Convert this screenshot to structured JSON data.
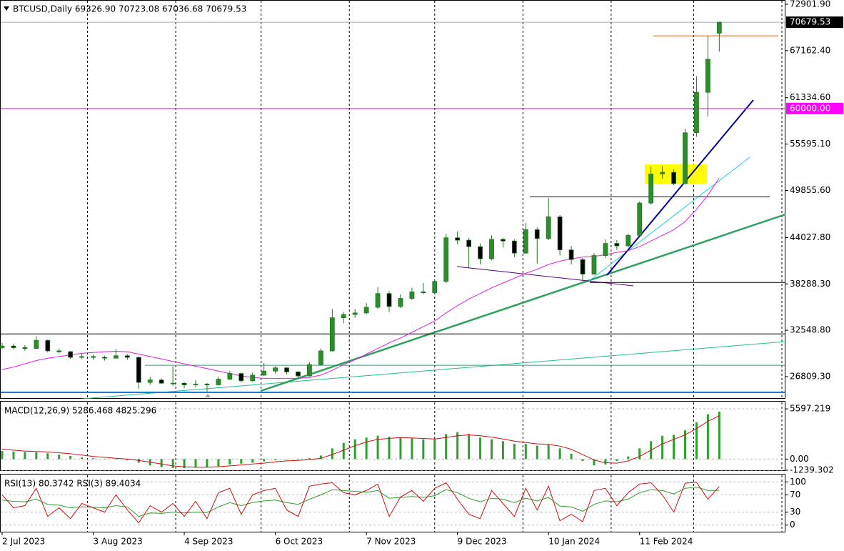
{
  "chart_data": [
    {
      "type": "candlestick",
      "title": "BTCUSD,Daily  69326.90 70723.08 67036.68 70679.53",
      "x": [
        "2023-07-02",
        "2023-07-06",
        "2023-07-10",
        "2023-07-14",
        "2023-07-18",
        "2023-07-22",
        "2023-07-26",
        "2023-07-30",
        "2023-08-03",
        "2023-08-07",
        "2023-08-11",
        "2023-08-15",
        "2023-08-19",
        "2023-08-23",
        "2023-08-27",
        "2023-08-31",
        "2023-09-04",
        "2023-09-08",
        "2023-09-12",
        "2023-09-16",
        "2023-09-20",
        "2023-09-24",
        "2023-09-28",
        "2023-10-02",
        "2023-10-06",
        "2023-10-10",
        "2023-10-14",
        "2023-10-18",
        "2023-10-22",
        "2023-10-26",
        "2023-10-30",
        "2023-11-03",
        "2023-11-07",
        "2023-11-11",
        "2023-11-15",
        "2023-11-19",
        "2023-11-23",
        "2023-11-27",
        "2023-12-01",
        "2023-12-05",
        "2023-12-09",
        "2023-12-13",
        "2023-12-17",
        "2023-12-21",
        "2023-12-25",
        "2023-12-29",
        "2024-01-02",
        "2024-01-06",
        "2024-01-10",
        "2024-01-14",
        "2024-01-18",
        "2024-01-22",
        "2024-01-26",
        "2024-01-30",
        "2024-02-03",
        "2024-02-07",
        "2024-02-11",
        "2024-02-15",
        "2024-02-19",
        "2024-02-23",
        "2024-02-27",
        "2024-03-02",
        "2024-03-06",
        "2024-03-10"
      ],
      "open": [
        30400,
        30600,
        30400,
        30300,
        31300,
        30000,
        29900,
        29200,
        29300,
        29200,
        29100,
        29400,
        29200,
        26100,
        26400,
        26000,
        26000,
        25800,
        25900,
        25800,
        26500,
        27200,
        26300,
        27000,
        27500,
        27900,
        27400,
        26900,
        28300,
        30000,
        34100,
        34500,
        34700,
        35400,
        37100,
        35500,
        36500,
        37300,
        37200,
        38600,
        44000,
        43700,
        42900,
        41400,
        43800,
        43600,
        42100,
        45000,
        43900,
        46600,
        42500,
        41300,
        39500,
        41800,
        43300,
        43000,
        44300,
        48300,
        51900,
        52100,
        50700,
        57000,
        62000,
        69326.9
      ],
      "high": [
        31000,
        30900,
        30700,
        31800,
        31400,
        30300,
        30000,
        29700,
        29500,
        29400,
        30200,
        29600,
        29300,
        26800,
        26600,
        28100,
        26100,
        26400,
        26000,
        26800,
        27500,
        27300,
        27300,
        28500,
        28100,
        28000,
        27500,
        28600,
        30300,
        35200,
        34800,
        35200,
        35900,
        37900,
        37400,
        37000,
        37800,
        38400,
        38800,
        44500,
        44800,
        44000,
        43300,
        44300,
        44000,
        43800,
        45800,
        45300,
        48900,
        46800,
        43000,
        41500,
        42100,
        43800,
        43700,
        44500,
        48500,
        52800,
        52900,
        52500,
        57500,
        64000,
        69000,
        70723.08
      ],
      "low": [
        30200,
        30200,
        30000,
        30200,
        29800,
        29700,
        29000,
        29000,
        28900,
        28800,
        29000,
        28900,
        25300,
        25800,
        25900,
        25700,
        25400,
        25500,
        24900,
        25700,
        26400,
        26100,
        26200,
        26900,
        27200,
        27100,
        26600,
        26800,
        28200,
        29900,
        33400,
        34100,
        34500,
        35200,
        34800,
        35300,
        36300,
        37000,
        37100,
        38400,
        43200,
        40300,
        40700,
        41200,
        42800,
        41600,
        42000,
        40800,
        43700,
        41800,
        40700,
        38600,
        39400,
        41500,
        42500,
        42800,
        44200,
        48100,
        51300,
        50500,
        50600,
        56500,
        59000,
        67036.68
      ],
      "close": [
        30600,
        30400,
        30300,
        31300,
        30000,
        29900,
        29200,
        29300,
        29200,
        29100,
        29400,
        29200,
        26100,
        26400,
        26000,
        26000,
        25800,
        25900,
        25800,
        26500,
        27200,
        26300,
        27000,
        27500,
        27900,
        27400,
        26900,
        28300,
        30000,
        34100,
        34500,
        34700,
        35400,
        37100,
        35500,
        36500,
        37300,
        37200,
        38600,
        44000,
        43700,
        42900,
        41400,
        43800,
        43600,
        42100,
        45000,
        43900,
        46600,
        42500,
        41300,
        39500,
        41800,
        43300,
        43000,
        44300,
        48300,
        51900,
        52100,
        50700,
        57000,
        62000,
        66100,
        70679.53
      ],
      "up_color": "#2e8b2e",
      "down_color": "#000000",
      "wick_color": "#1e7a1e",
      "ma": {
        "color": "#e020e0",
        "values": [
          27700,
          28000,
          28400,
          28800,
          29100,
          29300,
          29500,
          29700,
          29800,
          29900,
          29950,
          29900,
          29600,
          29300,
          29000,
          28700,
          28400,
          28100,
          27800,
          27500,
          27200,
          26900,
          26700,
          26600,
          26600,
          26600,
          26600,
          26700,
          27000,
          27600,
          28300,
          28900,
          29600,
          30300,
          31000,
          31600,
          32300,
          33000,
          33700,
          34700,
          35600,
          36400,
          37100,
          37800,
          38400,
          39000,
          39600,
          40100,
          40700,
          41100,
          41400,
          41600,
          41700,
          41900,
          42200,
          42400,
          42900,
          43600,
          44300,
          45000,
          46000,
          47500,
          49300,
          51400
        ]
      },
      "hlines": [
        {
          "value": 69000,
          "color": "#e06020"
        },
        {
          "value": 60000,
          "label": "60000.00",
          "color": "#ff00ff"
        },
        {
          "value": 49060,
          "color": "#000080"
        },
        {
          "value": 38470,
          "color": "#000000"
        },
        {
          "value": 32100,
          "color": "#000000"
        },
        {
          "value": 28220,
          "color": "#20a080"
        },
        {
          "value": 24870,
          "color": "#1e7ad0"
        }
      ],
      "last_price": {
        "value": 70679.53,
        "label": "70679.53"
      },
      "xlim": [
        "2023-07-02",
        "2024-04-01"
      ],
      "xticks": [
        {
          "value": "2023-07-02",
          "label": "2 Jul 2023"
        },
        {
          "value": "2023-08-03",
          "label": "3 Aug 2023"
        },
        {
          "value": "2023-09-04",
          "label": "4 Sep 2023"
        },
        {
          "value": "2023-10-06",
          "label": "6 Oct 2023"
        },
        {
          "value": "2023-11-07",
          "label": "7 Nov 2023"
        },
        {
          "value": "2023-12-09",
          "label": "9 Dec 2023"
        },
        {
          "value": "2024-01-10",
          "label": "10 Jan 2024"
        },
        {
          "value": "2024-02-11",
          "label": "11 Feb 2024"
        }
      ],
      "ylim": [
        24160,
        73430
      ],
      "yticks": [
        {
          "value": 72901.9,
          "label": "72901.90"
        },
        {
          "value": 67162.4,
          "label": "67162.40"
        },
        {
          "value": 61334.6,
          "label": "61334.60"
        },
        {
          "value": 55595.1,
          "label": "55595.10"
        },
        {
          "value": 49855.6,
          "label": "49855.60"
        },
        {
          "value": 44027.8,
          "label": "44027.80"
        },
        {
          "value": 38288.3,
          "label": "38288.30"
        },
        {
          "value": 32548.8,
          "label": "32548.80"
        },
        {
          "value": 26809.3,
          "label": "26809.30"
        }
      ]
    },
    {
      "type": "macd",
      "title": "MACD(12,26,9) 5286.468 4825.296",
      "histogram": {
        "color": "#2ea02e",
        "values": [
          900,
          850,
          800,
          750,
          650,
          500,
          350,
          200,
          100,
          0,
          -50,
          -100,
          -400,
          -700,
          -900,
          -1000,
          -1000,
          -950,
          -900,
          -800,
          -600,
          -500,
          -400,
          -250,
          -100,
          0,
          -50,
          100,
          400,
          1200,
          1800,
          2200,
          2400,
          2600,
          2500,
          2400,
          2300,
          2200,
          2200,
          2800,
          3000,
          2800,
          2400,
          2200,
          2000,
          1700,
          1700,
          1500,
          1600,
          1200,
          600,
          -200,
          -700,
          -600,
          -200,
          300,
          1200,
          2000,
          2600,
          2700,
          3200,
          4100,
          5000,
          5286.468
        ]
      },
      "signal": {
        "color": "#d01010",
        "values": [
          1100,
          1000,
          900,
          850,
          800,
          700,
          600,
          450,
          300,
          200,
          100,
          0,
          -150,
          -350,
          -550,
          -750,
          -850,
          -900,
          -900,
          -850,
          -750,
          -650,
          -550,
          -450,
          -300,
          -200,
          -150,
          -50,
          100,
          500,
          1000,
          1500,
          1900,
          2200,
          2300,
          2400,
          2350,
          2300,
          2250,
          2400,
          2600,
          2700,
          2600,
          2450,
          2250,
          2000,
          1850,
          1700,
          1650,
          1450,
          1100,
          500,
          -100,
          -400,
          -450,
          -200,
          300,
          1000,
          1700,
          2200,
          2700,
          3400,
          4200,
          4825.296
        ]
      },
      "ylim": [
        -1239.302,
        6400
      ],
      "yticks": [
        5597.219,
        {
          "value": 0,
          "label": "0.00"
        },
        -1239.302
      ]
    },
    {
      "type": "line",
      "title": "RSI(13) 80.3742  RSI(3) 89.4034",
      "series": [
        {
          "color": "#2ea02e",
          "values": [
            58,
            55,
            54,
            60,
            48,
            46,
            40,
            42,
            41,
            40,
            45,
            42,
            20,
            28,
            27,
            30,
            28,
            30,
            29,
            42,
            52,
            45,
            52,
            56,
            58,
            52,
            48,
            60,
            70,
            82,
            80,
            78,
            76,
            80,
            62,
            64,
            66,
            64,
            68,
            82,
            75,
            62,
            54,
            62,
            60,
            52,
            62,
            56,
            64,
            44,
            42,
            32,
            48,
            56,
            54,
            60,
            75,
            82,
            80,
            72,
            85,
            88,
            80,
            80.3742
          ]
        },
        {
          "color": "#d01010",
          "values": [
            70,
            40,
            45,
            85,
            20,
            40,
            15,
            50,
            40,
            30,
            70,
            35,
            5,
            45,
            30,
            50,
            20,
            55,
            15,
            75,
            85,
            25,
            70,
            80,
            85,
            35,
            20,
            90,
            95,
            98,
            75,
            70,
            80,
            95,
            20,
            65,
            80,
            55,
            85,
            98,
            60,
            25,
            15,
            80,
            50,
            20,
            85,
            35,
            90,
            10,
            25,
            8,
            80,
            85,
            45,
            75,
            95,
            98,
            70,
            30,
            97,
            99,
            60,
            89.4034
          ]
        }
      ],
      "ylim": [
        -17,
        117
      ],
      "yticks": [
        100,
        70,
        30,
        0
      ]
    }
  ]
}
